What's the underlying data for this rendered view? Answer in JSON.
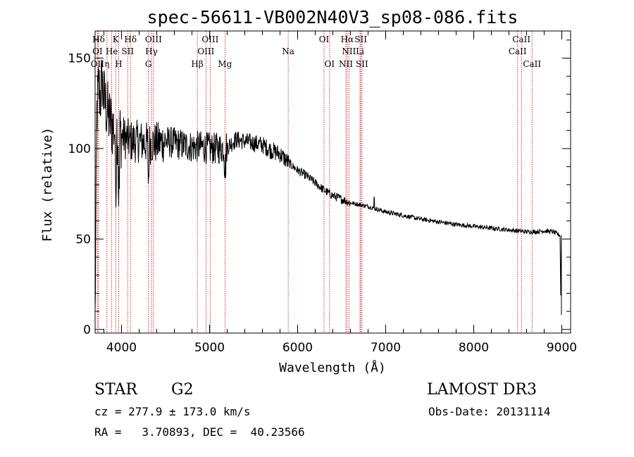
{
  "chart_data": {
    "type": "line",
    "title": "spec-56611-VB002N40V3_sp08-086.fits",
    "xlabel": "Wavelength (Å)",
    "ylabel": "Flux (relative)",
    "xlim": [
      3700,
      9100
    ],
    "ylim": [
      -2,
      165
    ],
    "xticks": [
      4000,
      5000,
      6000,
      7000,
      8000,
      9000
    ],
    "yticks": [
      0,
      50,
      100,
      150
    ],
    "grid": false,
    "spectrum_anchors": [
      [
        3700,
        5
      ],
      [
        3720,
        120
      ],
      [
        3740,
        135
      ],
      [
        3760,
        128
      ],
      [
        3780,
        138
      ],
      [
        3800,
        128
      ],
      [
        3850,
        118
      ],
      [
        3900,
        112
      ],
      [
        3950,
        110
      ],
      [
        4000,
        107
      ],
      [
        4100,
        104
      ],
      [
        4200,
        104
      ],
      [
        4300,
        103
      ],
      [
        4400,
        103
      ],
      [
        4500,
        104
      ],
      [
        4600,
        103
      ],
      [
        4700,
        102
      ],
      [
        4800,
        101
      ],
      [
        4900,
        101
      ],
      [
        5000,
        100
      ],
      [
        5100,
        100
      ],
      [
        5200,
        101
      ],
      [
        5300,
        105
      ],
      [
        5400,
        104
      ],
      [
        5500,
        103
      ],
      [
        5600,
        102
      ],
      [
        5700,
        99
      ],
      [
        5800,
        97
      ],
      [
        5900,
        92
      ],
      [
        6000,
        88
      ],
      [
        6100,
        85
      ],
      [
        6200,
        81
      ],
      [
        6300,
        77
      ],
      [
        6400,
        74
      ],
      [
        6500,
        72
      ],
      [
        6600,
        70
      ],
      [
        6700,
        69
      ],
      [
        6800,
        68
      ],
      [
        7000,
        65
      ],
      [
        7200,
        63
      ],
      [
        7400,
        61
      ],
      [
        7600,
        59.5
      ],
      [
        7800,
        58
      ],
      [
        8000,
        57
      ],
      [
        8200,
        56
      ],
      [
        8400,
        55
      ],
      [
        8600,
        54
      ],
      [
        8700,
        54
      ],
      [
        8800,
        54.5
      ],
      [
        8900,
        54
      ],
      [
        8980,
        52
      ],
      [
        8990,
        10
      ]
    ],
    "spectral_lines": [
      {
        "label": "Hδ",
        "x": 3740,
        "row": 0
      },
      {
        "label": "K",
        "x": 3934,
        "row": 0
      },
      {
        "label": "Hδ",
        "x": 4102,
        "row": 0
      },
      {
        "label": "OIII",
        "x": 4363,
        "row": 0
      },
      {
        "label": "OIII",
        "x": 5007,
        "row": 0
      },
      {
        "label": "OI",
        "x": 6300,
        "row": 0
      },
      {
        "label": "Hα",
        "x": 6563,
        "row": 0
      },
      {
        "label": "SII",
        "x": 6717,
        "row": 0
      },
      {
        "label": "CaII",
        "x": 8542,
        "row": 0
      },
      {
        "label": "OI",
        "x": 3727,
        "row": 1
      },
      {
        "label": "He",
        "x": 3889,
        "row": 1
      },
      {
        "label": "SII",
        "x": 4070,
        "row": 1
      },
      {
        "label": "Hγ",
        "x": 4340,
        "row": 1
      },
      {
        "label": "OIII",
        "x": 4959,
        "row": 1
      },
      {
        "label": "Na",
        "x": 5893,
        "row": 1
      },
      {
        "label": "NII",
        "x": 6583,
        "row": 1
      },
      {
        "label": "Li",
        "x": 6708,
        "row": 1
      },
      {
        "label": "CaII",
        "x": 8498,
        "row": 1
      },
      {
        "label": "OII",
        "x": 3727,
        "row": 2
      },
      {
        "label": "η",
        "x": 3835,
        "row": 2
      },
      {
        "label": "H",
        "x": 3968,
        "row": 2
      },
      {
        "label": "G",
        "x": 4305,
        "row": 2
      },
      {
        "label": "Hβ",
        "x": 4861,
        "row": 2
      },
      {
        "label": "Mg",
        "x": 5175,
        "row": 2
      },
      {
        "label": "OI",
        "x": 6363,
        "row": 2
      },
      {
        "label": "NII",
        "x": 6548,
        "row": 2
      },
      {
        "label": "SII",
        "x": 6731,
        "row": 2
      },
      {
        "label": "CaII",
        "x": 8662,
        "row": 2
      }
    ]
  },
  "info": {
    "object_class": "STAR",
    "subclass": "G2",
    "survey": "LAMOST DR3",
    "redshift": "cz = 277.9 ± 173.0 km/s",
    "obs_date": "Obs-Date: 20131114",
    "coords": "RA =   3.70893, DEC =  40.23566"
  },
  "colors": {
    "spectrum": "#000000",
    "line_markers": "#cc0000",
    "axes": "#000000"
  }
}
